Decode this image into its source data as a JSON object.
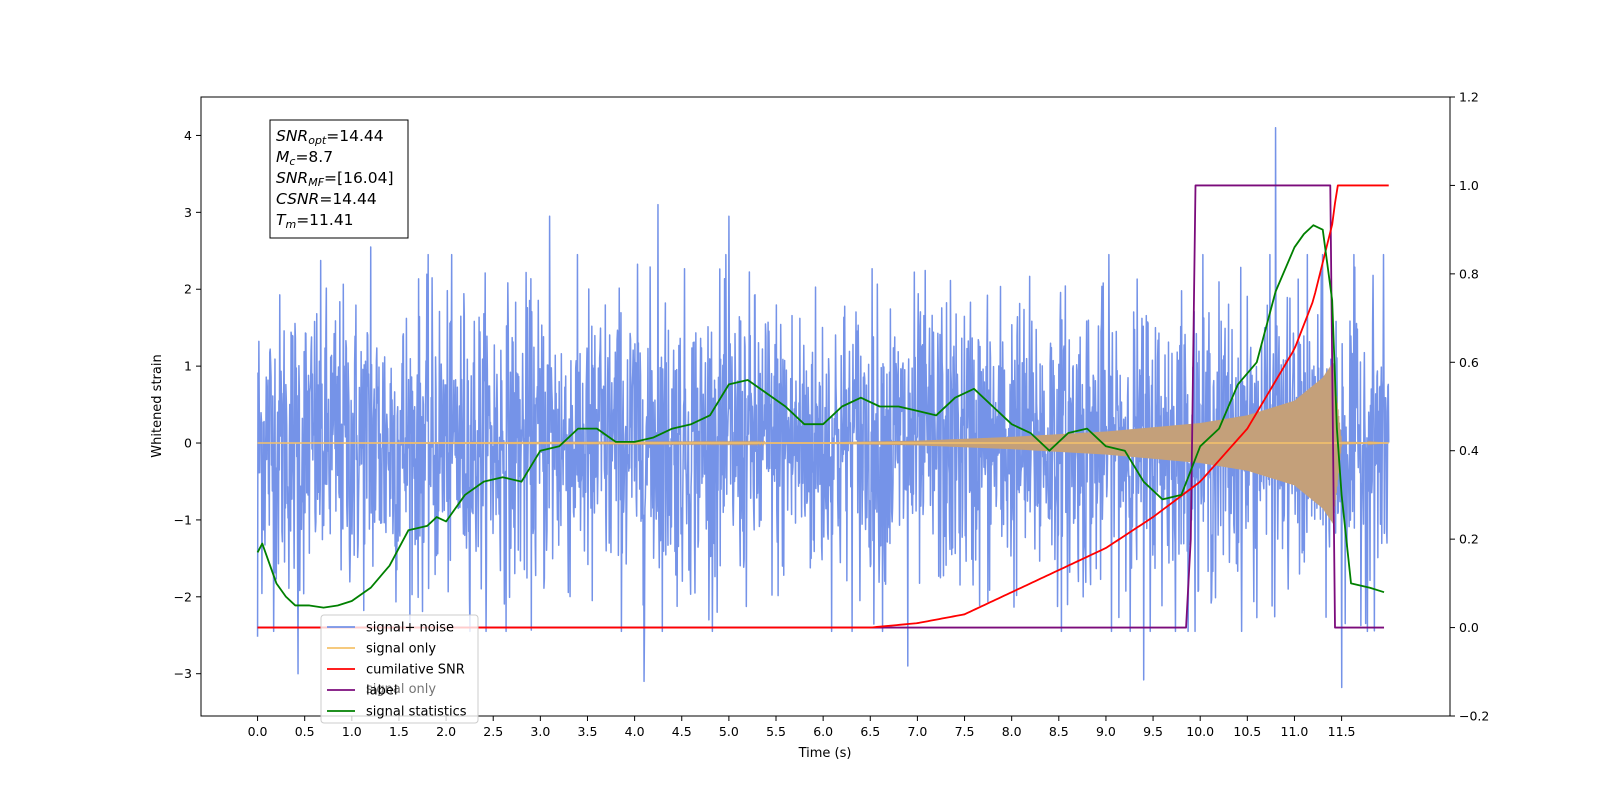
{
  "chart_data": {
    "type": "line",
    "xlabel": "Time (s)",
    "ylabel_left": "Whitened strain",
    "ylabel_right": "",
    "xlim": [
      -0.6,
      12.65
    ],
    "ylim_left": [
      -3.55,
      4.5
    ],
    "ylim_right": [
      -0.2,
      1.2
    ],
    "x_ticks": [
      0.0,
      0.5,
      1.0,
      1.5,
      2.0,
      2.5,
      3.0,
      3.5,
      4.0,
      4.5,
      5.0,
      5.5,
      6.0,
      6.5,
      7.0,
      7.5,
      8.0,
      8.5,
      9.0,
      9.5,
      10.0,
      10.5,
      11.0,
      11.5
    ],
    "x_tick_labels": [
      "0.0",
      "0.5",
      "1.0",
      "1.5",
      "2.0",
      "2.5",
      "3.0",
      "3.5",
      "4.0",
      "4.5",
      "5.0",
      "5.5",
      "6.0",
      "6.5",
      "7.0",
      "7.5",
      "8.0",
      "8.5",
      "9.0",
      "9.5",
      "10.0",
      "10.5",
      "11.0",
      "11.5"
    ],
    "y_left_ticks": [
      -3,
      -2,
      -1,
      0,
      1,
      2,
      3,
      4
    ],
    "y_left_tick_labels": [
      "−3",
      "−2",
      "−1",
      "0",
      "1",
      "2",
      "3",
      "4"
    ],
    "y_right_ticks": [
      -0.2,
      0.0,
      0.2,
      0.4,
      0.6,
      0.8,
      1.0,
      1.2
    ],
    "y_right_tick_labels": [
      "−0.2",
      "0.0",
      "0.2",
      "0.4",
      "0.6",
      "0.8",
      "1.0",
      "1.2"
    ],
    "grid": false,
    "legend_position": "lower-left",
    "legend": [
      {
        "label": "signal+ noise",
        "color": "#7593e8"
      },
      {
        "label": "signal only",
        "color": "#f5c26b"
      },
      {
        "label": "cumilative SNR",
        "color": "#ff0000"
      },
      {
        "label": "label",
        "color": "#7b0b7b"
      },
      {
        "label": "signal statistics",
        "color": "#008000"
      }
    ],
    "hidden_legend_text": "signal only",
    "annotation": {
      "lines": [
        {
          "main": "SNR",
          "sub": "opt",
          "rest": "=14.44"
        },
        {
          "main": "M",
          "sub": "c",
          "rest": "=8.7"
        },
        {
          "main": "SNR",
          "sub": "MF",
          "rest": "=[16.04]"
        },
        {
          "main": "CSNR",
          "sub": "",
          "rest": "=14.44"
        },
        {
          "main": "T",
          "sub": "m",
          "rest": "=11.41"
        }
      ]
    },
    "series": [
      {
        "name": "signal+ noise",
        "axis": "left",
        "color": "#7593e8",
        "style": "dense noise, approx. Gaussian, amplitude about ±2.5, t from 0 to 12",
        "peaks": [
          [
            0.0,
            2.45
          ],
          [
            0.0,
            -2.52
          ],
          [
            0.43,
            -3.0
          ],
          [
            1.2,
            2.55
          ],
          [
            3.1,
            2.95
          ],
          [
            3.55,
            -2.05
          ],
          [
            4.1,
            -3.1
          ],
          [
            4.25,
            3.1
          ],
          [
            5.0,
            2.95
          ],
          [
            6.9,
            -2.9
          ],
          [
            9.4,
            -3.08
          ],
          [
            10.8,
            4.1
          ],
          [
            11.5,
            -3.18
          ]
        ],
        "x_start": 0.0,
        "x_end": 12.0
      },
      {
        "name": "signal only",
        "axis": "left",
        "color": "#c4a07a",
        "style": "chirp oscillation with envelope growing to peak near t=11.4 then ringdown",
        "envelope": {
          "x": [
            0.0,
            6.0,
            7.0,
            8.0,
            9.0,
            10.0,
            10.5,
            11.0,
            11.3,
            11.41,
            11.5,
            12.0
          ],
          "y": [
            0.0,
            0.01,
            0.03,
            0.08,
            0.15,
            0.26,
            0.36,
            0.55,
            0.85,
            1.05,
            0.02,
            0.0
          ]
        },
        "x_start": 0.0,
        "x_end": 12.0
      },
      {
        "name": "cumilative SNR",
        "axis": "right",
        "color": "#ff0000",
        "x": [
          0.0,
          6.5,
          7.0,
          7.5,
          8.0,
          8.5,
          9.0,
          9.5,
          10.0,
          10.5,
          11.0,
          11.2,
          11.41,
          11.45,
          12.0
        ],
        "y": [
          0.0,
          0.0,
          0.01,
          0.03,
          0.08,
          0.13,
          0.18,
          0.25,
          0.33,
          0.45,
          0.63,
          0.74,
          0.92,
          1.0,
          1.0
        ]
      },
      {
        "name": "label",
        "axis": "right",
        "color": "#7b0b7b",
        "x": [
          0.0,
          9.85,
          9.9,
          9.95,
          11.38,
          11.43,
          11.95
        ],
        "y": [
          0.0,
          0.0,
          0.2,
          1.0,
          1.0,
          0.0,
          0.0
        ]
      },
      {
        "name": "signal statistics",
        "axis": "right",
        "color": "#008000",
        "x": [
          0.0,
          0.05,
          0.1,
          0.2,
          0.3,
          0.4,
          0.55,
          0.7,
          0.85,
          1.0,
          1.2,
          1.4,
          1.6,
          1.8,
          1.9,
          2.0,
          2.2,
          2.4,
          2.6,
          2.8,
          3.0,
          3.2,
          3.4,
          3.6,
          3.8,
          4.0,
          4.2,
          4.4,
          4.6,
          4.8,
          5.0,
          5.2,
          5.4,
          5.6,
          5.8,
          6.0,
          6.2,
          6.4,
          6.6,
          6.8,
          7.0,
          7.2,
          7.4,
          7.6,
          7.8,
          8.0,
          8.2,
          8.4,
          8.6,
          8.8,
          9.0,
          9.2,
          9.4,
          9.6,
          9.8,
          10.0,
          10.2,
          10.4,
          10.6,
          10.8,
          11.0,
          11.1,
          11.2,
          11.3,
          11.4,
          11.45,
          11.5,
          11.6,
          11.8,
          11.95
        ],
        "y": [
          0.17,
          0.19,
          0.16,
          0.1,
          0.07,
          0.05,
          0.05,
          0.045,
          0.05,
          0.06,
          0.09,
          0.14,
          0.22,
          0.23,
          0.25,
          0.24,
          0.3,
          0.33,
          0.34,
          0.33,
          0.4,
          0.41,
          0.45,
          0.45,
          0.42,
          0.42,
          0.43,
          0.45,
          0.46,
          0.48,
          0.55,
          0.56,
          0.53,
          0.5,
          0.46,
          0.46,
          0.5,
          0.52,
          0.5,
          0.5,
          0.49,
          0.48,
          0.52,
          0.54,
          0.5,
          0.46,
          0.44,
          0.4,
          0.44,
          0.45,
          0.41,
          0.4,
          0.33,
          0.29,
          0.3,
          0.41,
          0.45,
          0.55,
          0.6,
          0.76,
          0.86,
          0.89,
          0.91,
          0.9,
          0.74,
          0.45,
          0.3,
          0.1,
          0.09,
          0.08
        ]
      }
    ]
  }
}
